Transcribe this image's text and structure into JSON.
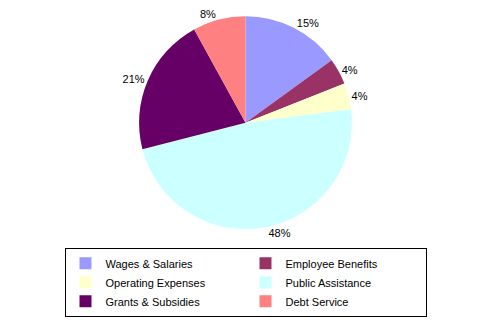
{
  "chart_data": {
    "type": "pie",
    "categories": [
      "Wages & Salaries",
      "Employee Benefits",
      "Operating Expenses",
      "Public Assistance",
      "Grants & Subsidies",
      "Debt Service"
    ],
    "values": [
      15,
      4,
      4,
      48,
      21,
      8
    ],
    "value_labels": [
      "15%",
      "4%",
      "4%",
      "48%",
      "21%",
      "8%"
    ],
    "colors": [
      "#9999ff",
      "#993366",
      "#ffffcc",
      "#ccffff",
      "#660066",
      "#ff8080"
    ],
    "data_labels": true,
    "legend": "bottom"
  }
}
